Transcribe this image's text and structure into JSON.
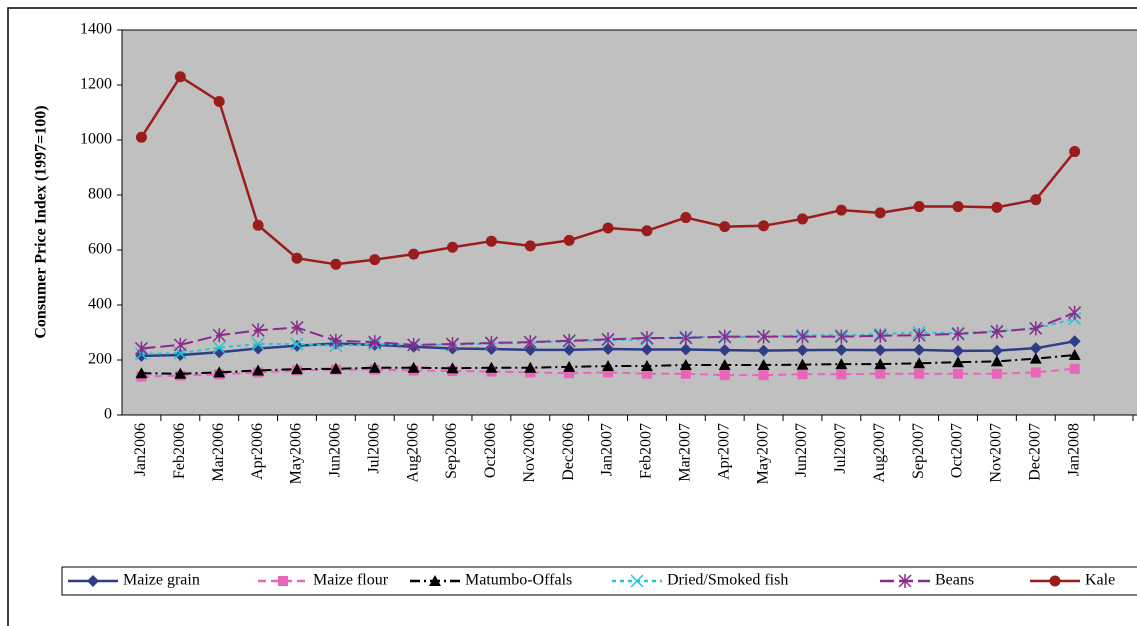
{
  "chart_data": {
    "type": "line",
    "y_label": "Consumer Price Index (1997=100)",
    "categories": [
      "Jan2006",
      "Feb2006",
      "Mar2006",
      "Apr2006",
      "May2006",
      "Jun2006",
      "Jul2006",
      "Aug2006",
      "Sep2006",
      "Oct2006",
      "Nov2006",
      "Dec2006",
      "Jan2007",
      "Feb2007",
      "Mar2007",
      "Apr2007",
      "May2007",
      "Jun2007",
      "Jul2007",
      "Aug2007",
      "Sep2007",
      "Oct2007",
      "Nov2007",
      "Dec2007",
      "Jan2008",
      null
    ],
    "ylim": [
      0,
      1400
    ],
    "yticks": [
      0,
      200,
      400,
      600,
      800,
      1000,
      1200,
      1400
    ],
    "grid": false,
    "legend": "bottom",
    "background": "#c0c0c0",
    "series": [
      {
        "name": "Maize grain",
        "color": "#2e3d86",
        "marker": "diamond",
        "dash": "solid",
        "values": [
          215,
          218,
          228,
          242,
          252,
          260,
          255,
          248,
          242,
          240,
          237,
          237,
          240,
          238,
          238,
          236,
          234,
          236,
          237,
          236,
          237,
          233,
          234,
          243,
          268,
          null
        ]
      },
      {
        "name": "Maize flour",
        "color": "#e866b8",
        "marker": "square",
        "dash": "dashed",
        "values": [
          140,
          143,
          148,
          155,
          162,
          165,
          165,
          162,
          160,
          158,
          155,
          152,
          155,
          150,
          150,
          145,
          145,
          148,
          148,
          150,
          150,
          150,
          150,
          155,
          168,
          null
        ]
      },
      {
        "name": "Matumbo-Offals",
        "color": "#000000",
        "marker": "triangle",
        "dash": "dashdot",
        "values": [
          152,
          150,
          155,
          162,
          167,
          168,
          172,
          172,
          170,
          172,
          172,
          175,
          178,
          178,
          182,
          182,
          182,
          183,
          185,
          185,
          188,
          192,
          195,
          205,
          218,
          null
        ]
      },
      {
        "name": "Dried/Smoked fish",
        "color": "#22c6d8",
        "marker": "x",
        "dash": "dotted",
        "values": [
          222,
          225,
          245,
          258,
          258,
          252,
          258,
          255,
          255,
          260,
          263,
          268,
          272,
          275,
          285,
          282,
          285,
          290,
          290,
          295,
          300,
          298,
          305,
          315,
          350,
          null
        ]
      },
      {
        "name": "Beans",
        "color": "#8a2a8a",
        "marker": "star",
        "dash": "longdash",
        "values": [
          242,
          255,
          290,
          308,
          318,
          270,
          265,
          255,
          258,
          262,
          265,
          270,
          275,
          280,
          280,
          285,
          285,
          285,
          285,
          288,
          290,
          295,
          303,
          315,
          372,
          null
        ]
      },
      {
        "name": "Kale",
        "color": "#9b1c1c",
        "marker": "circle",
        "dash": "solid",
        "values": [
          1010,
          1230,
          1140,
          690,
          570,
          548,
          565,
          585,
          610,
          632,
          615,
          635,
          680,
          670,
          718,
          685,
          688,
          713,
          745,
          735,
          758,
          758,
          755,
          783,
          958,
          null
        ]
      }
    ]
  }
}
